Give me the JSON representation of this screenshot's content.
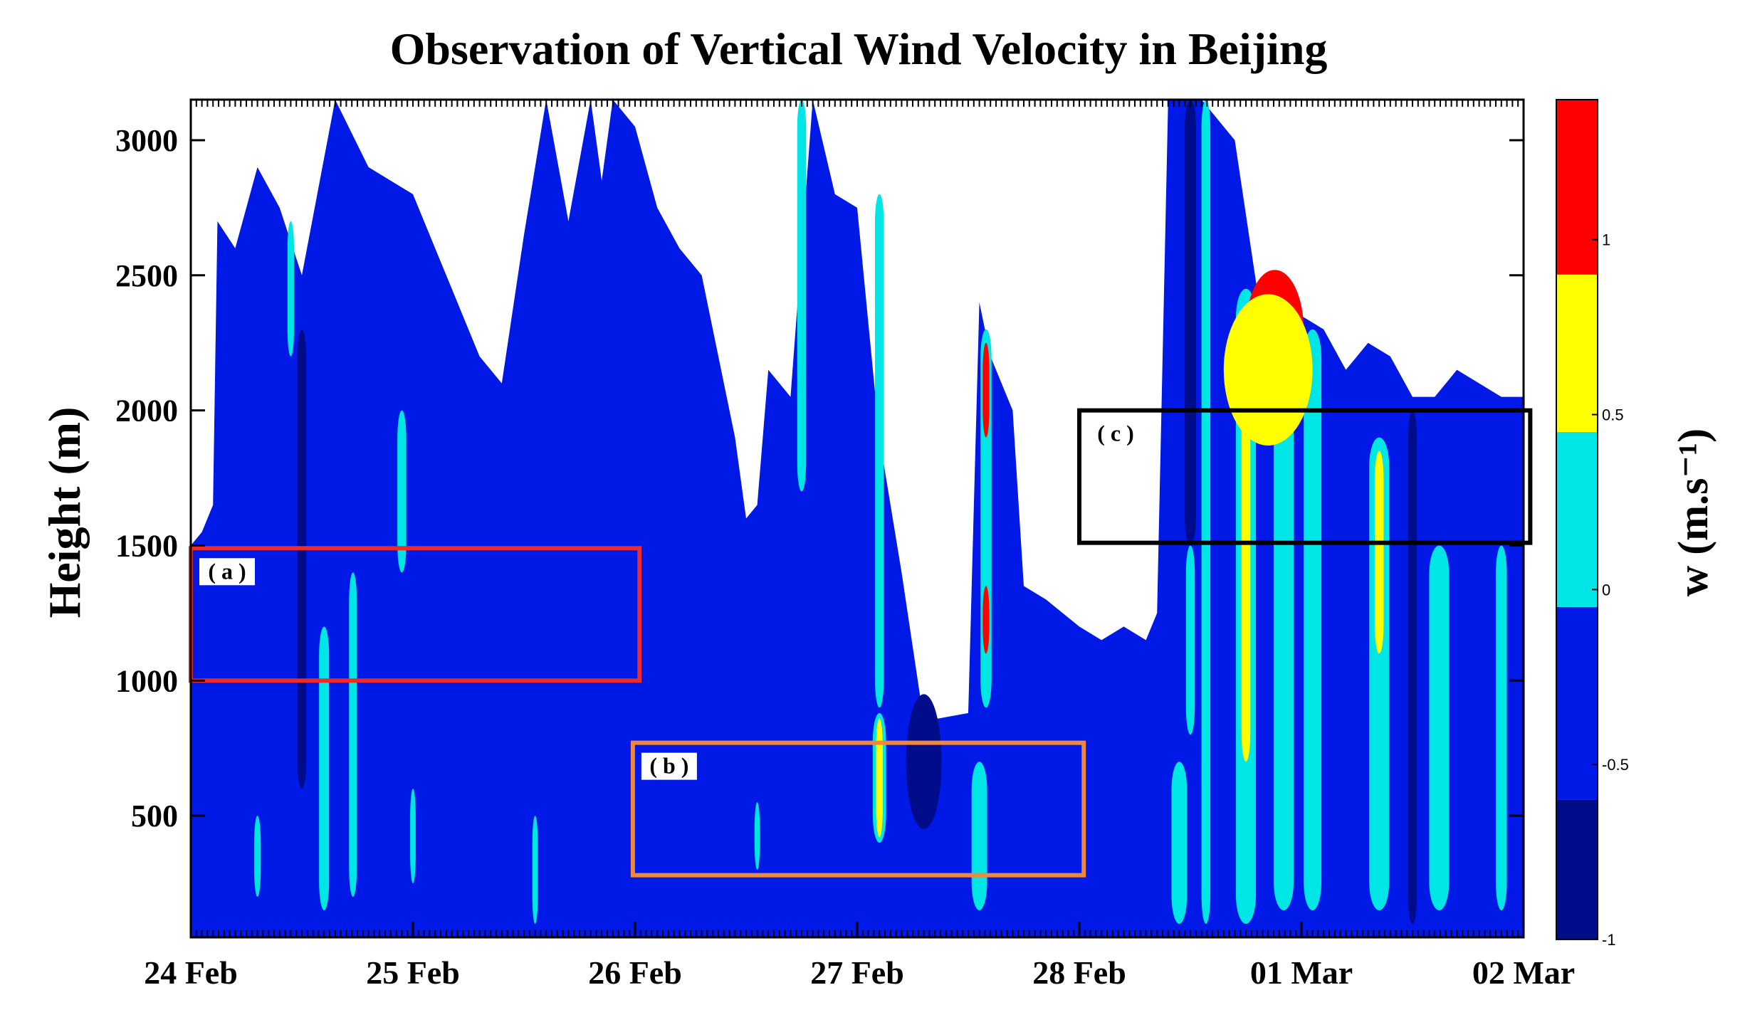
{
  "chart_data": {
    "type": "heatmap",
    "title": "Observation of Vertical Wind Velocity in Beijing",
    "ylabel": "Height (m)",
    "colorbar_label": "w (m.s⁻¹)",
    "x_tick_labels": [
      "24 Feb",
      "25 Feb",
      "26 Feb",
      "27 Feb",
      "28 Feb",
      "01 Mar",
      "02 Mar"
    ],
    "x_tick_values": [
      0,
      1,
      2,
      3,
      4,
      5,
      6
    ],
    "xlim": [
      0,
      6
    ],
    "y_ticks": [
      500,
      1000,
      1500,
      2000,
      2500,
      3000
    ],
    "y_tick_labels": [
      "500",
      "1000",
      "1500",
      "2000",
      "2500",
      "3000"
    ],
    "ylim": [
      50,
      3150
    ],
    "grid": false,
    "color_levels": [
      {
        "from": -1.0,
        "to": -0.6,
        "color": "#000c8a"
      },
      {
        "from": -0.6,
        "to": -0.05,
        "color": "#0019e6"
      },
      {
        "from": -0.05,
        "to": 0.45,
        "color": "#00e5e5"
      },
      {
        "from": 0.45,
        "to": 0.9,
        "color": "#ffff00"
      },
      {
        "from": 0.9,
        "to": 1.4,
        "color": "#ff0000"
      }
    ],
    "colorbar_ticks": [
      -1,
      -0.5,
      0,
      0.5,
      1
    ],
    "colorbar_tick_labels": [
      "-1",
      "-0.5",
      "0",
      "0.5",
      "1"
    ],
    "colorbar_range": [
      -1,
      1.4
    ],
    "no_data_color": "#ffffff",
    "field": {
      "background_value": -0.3,
      "top_of_data": [
        [
          0.0,
          1500
        ],
        [
          0.05,
          1550
        ],
        [
          0.1,
          1650
        ],
        [
          0.12,
          2700
        ],
        [
          0.2,
          2600
        ],
        [
          0.3,
          2900
        ],
        [
          0.4,
          2750
        ],
        [
          0.5,
          2500
        ],
        [
          0.65,
          3150
        ],
        [
          0.8,
          2900
        ],
        [
          1.0,
          2800
        ],
        [
          1.1,
          2600
        ],
        [
          1.2,
          2400
        ],
        [
          1.3,
          2200
        ],
        [
          1.4,
          2100
        ],
        [
          1.5,
          2650
        ],
        [
          1.6,
          3150
        ],
        [
          1.7,
          2700
        ],
        [
          1.8,
          3150
        ],
        [
          1.85,
          2850
        ],
        [
          1.9,
          3150
        ],
        [
          2.0,
          3050
        ],
        [
          2.1,
          2750
        ],
        [
          2.2,
          2600
        ],
        [
          2.3,
          2500
        ],
        [
          2.4,
          2100
        ],
        [
          2.45,
          1900
        ],
        [
          2.5,
          1600
        ],
        [
          2.55,
          1650
        ],
        [
          2.6,
          2150
        ],
        [
          2.7,
          2050
        ],
        [
          2.8,
          3150
        ],
        [
          2.9,
          2800
        ],
        [
          3.0,
          2750
        ],
        [
          3.1,
          1900
        ],
        [
          3.2,
          1400
        ],
        [
          3.3,
          850
        ],
        [
          3.5,
          880
        ],
        [
          3.55,
          2400
        ],
        [
          3.6,
          2200
        ],
        [
          3.7,
          2000
        ],
        [
          3.75,
          1350
        ],
        [
          3.85,
          1300
        ],
        [
          4.0,
          1200
        ],
        [
          4.1,
          1150
        ],
        [
          4.2,
          1200
        ],
        [
          4.3,
          1150
        ],
        [
          4.35,
          1250
        ],
        [
          4.4,
          3150
        ],
        [
          4.55,
          3150
        ],
        [
          4.7,
          3000
        ],
        [
          4.8,
          2450
        ],
        [
          5.0,
          2350
        ],
        [
          5.1,
          2300
        ],
        [
          5.2,
          2150
        ],
        [
          5.3,
          2250
        ],
        [
          5.4,
          2200
        ],
        [
          5.5,
          2050
        ],
        [
          5.6,
          2050
        ],
        [
          5.7,
          2150
        ],
        [
          5.8,
          2100
        ],
        [
          5.9,
          2050
        ],
        [
          6.0,
          2050
        ]
      ],
      "features": [
        {
          "type": "streak",
          "x": 0.5,
          "bottom": 600,
          "top": 2300,
          "width": 0.04,
          "value": -0.8
        },
        {
          "type": "streak",
          "x": 0.6,
          "bottom": 150,
          "top": 1200,
          "width": 0.045,
          "value": 0.2
        },
        {
          "type": "streak",
          "x": 0.73,
          "bottom": 200,
          "top": 1400,
          "width": 0.035,
          "value": 0.2
        },
        {
          "type": "streak",
          "x": 0.95,
          "bottom": 1400,
          "top": 2000,
          "width": 0.04,
          "value": 0.2
        },
        {
          "type": "streak",
          "x": 0.45,
          "bottom": 2200,
          "top": 2700,
          "width": 0.03,
          "value": 0.2
        },
        {
          "type": "streak",
          "x": 0.3,
          "bottom": 200,
          "top": 500,
          "width": 0.03,
          "value": 0.2
        },
        {
          "type": "streak",
          "x": 1.0,
          "bottom": 250,
          "top": 600,
          "width": 0.025,
          "value": 0.2
        },
        {
          "type": "streak",
          "x": 1.55,
          "bottom": 100,
          "top": 500,
          "width": 0.025,
          "value": 0.2
        },
        {
          "type": "streak",
          "x": 2.55,
          "bottom": 300,
          "top": 550,
          "width": 0.025,
          "value": 0.2
        },
        {
          "type": "streak",
          "x": 2.75,
          "bottom": 1700,
          "top": 3150,
          "width": 0.04,
          "value": 0.2
        },
        {
          "type": "streak",
          "x": 3.1,
          "bottom": 900,
          "top": 2800,
          "width": 0.04,
          "value": 0.2
        },
        {
          "type": "streak",
          "x": 3.1,
          "bottom": 400,
          "top": 880,
          "width": 0.06,
          "value": 0.2
        },
        {
          "type": "streak",
          "x": 3.1,
          "bottom": 420,
          "top": 860,
          "width": 0.03,
          "value": 0.7
        },
        {
          "type": "streak",
          "x": 3.55,
          "bottom": 150,
          "top": 700,
          "width": 0.07,
          "value": 0.2
        },
        {
          "type": "streak",
          "x": 3.58,
          "bottom": 900,
          "top": 2300,
          "width": 0.05,
          "value": 0.2
        },
        {
          "type": "streak",
          "x": 3.58,
          "bottom": 1900,
          "top": 2250,
          "width": 0.03,
          "value": 1.1
        },
        {
          "type": "streak",
          "x": 3.58,
          "bottom": 1100,
          "top": 1350,
          "width": 0.03,
          "value": 1.1
        },
        {
          "type": "streak",
          "x": 4.45,
          "bottom": 100,
          "top": 700,
          "width": 0.07,
          "value": 0.2
        },
        {
          "type": "streak",
          "x": 4.5,
          "bottom": 800,
          "top": 1500,
          "width": 0.04,
          "value": 0.2
        },
        {
          "type": "streak",
          "x": 4.5,
          "bottom": 1500,
          "top": 3150,
          "width": 0.05,
          "value": -0.8
        },
        {
          "type": "streak",
          "x": 4.57,
          "bottom": 100,
          "top": 3150,
          "width": 0.04,
          "value": 0.2
        },
        {
          "type": "streak",
          "x": 4.75,
          "bottom": 100,
          "top": 2450,
          "width": 0.09,
          "value": 0.2
        },
        {
          "type": "streak",
          "x": 4.75,
          "bottom": 700,
          "top": 2300,
          "width": 0.04,
          "value": 0.7
        },
        {
          "type": "streak",
          "x": 4.92,
          "bottom": 150,
          "top": 2250,
          "width": 0.09,
          "value": 0.2
        },
        {
          "type": "streak",
          "x": 5.05,
          "bottom": 150,
          "top": 2300,
          "width": 0.08,
          "value": 0.2
        },
        {
          "type": "streak",
          "x": 5.35,
          "bottom": 150,
          "top": 1900,
          "width": 0.09,
          "value": 0.2
        },
        {
          "type": "streak",
          "x": 5.35,
          "bottom": 1100,
          "top": 1850,
          "width": 0.04,
          "value": 0.7
        },
        {
          "type": "streak",
          "x": 5.62,
          "bottom": 150,
          "top": 1500,
          "width": 0.09,
          "value": 0.2
        },
        {
          "type": "streak",
          "x": 5.5,
          "bottom": 100,
          "top": 2000,
          "width": 0.04,
          "value": -0.8
        },
        {
          "type": "streak",
          "x": 5.9,
          "bottom": 150,
          "top": 1500,
          "width": 0.05,
          "value": 0.2
        },
        {
          "type": "blob",
          "x": 4.88,
          "y": 2300,
          "rx": 0.13,
          "ry": 220,
          "value": 1.1
        },
        {
          "type": "blob",
          "x": 4.85,
          "y": 2150,
          "rx": 0.2,
          "ry": 280,
          "value": 0.7
        },
        {
          "type": "blob",
          "x": 3.3,
          "y": 700,
          "rx": 0.08,
          "ry": 250,
          "value": -0.8
        }
      ]
    },
    "annotations": [
      {
        "label": "( a )",
        "x0": 0.0,
        "x1": 2.02,
        "y0": 1000,
        "y1": 1490,
        "color": "#ee2b2b"
      },
      {
        "label": "( b )",
        "x0": 1.99,
        "x1": 4.02,
        "y0": 280,
        "y1": 770,
        "color": "#f0883a"
      },
      {
        "label": "( c )",
        "x0": 4.0,
        "x1": 6.03,
        "y0": 1510,
        "y1": 2000,
        "color": "#000000"
      }
    ]
  }
}
